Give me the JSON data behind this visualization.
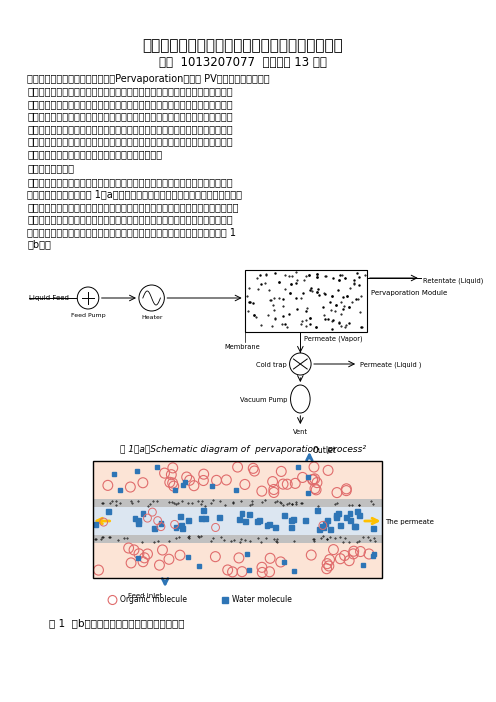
{
  "title": "滲透汽化膜分离法在脱除汽油中有机硫化物的应用",
  "author_line": "王雪  1013207077  化学工艺 13 级博",
  "lines_p1": [
    "　　滲透汽化技术又称滲透蒸发（Pervaporation，简称 PV）技术作为一项新兴",
    "膜分离技术，以其高效、经济、安全、清洁等优点，在石油化工、医药、食品、",
    "环保等领域广泛应用，成为目前膜分离研究领域的热点之一。该技术用于液体混",
    "合物的分离，其突出的优点是能够以低的能耗实现蒸馏、萌取、吸附等传统方法",
    "难于完成的分离任务。它特别适用于蒸馏法难以分离或不能分离的近汸点、恒汸",
    "点混合物及同分异构体的分离；对有机溶剖及混合溶剖中微量水的脱除及废水中",
    "少量有机污染物的分离具有明显的技术和经济优势。"
  ],
  "section1": "　　一、基本原理",
  "lines_p2": [
    "　　滲透汽化是利用膜对液体混合物中各组分的溶解扩散性能的不同，实现组分",
    "分离的一种膜过程，见图 1（a）。在滲透汽化过程中，料液侧（膜上游侧）通过",
    "加热提高待分离组分的分压，膜下游侧通常与真空泵相连，维持很低的组分分压，",
    "在膜两侧组分分压差的推动下，各组分选择性地通过膜表面进行扩散，并在膜下",
    "游侧汽化，最后通过冷凝的方式移出。有机溶剖脱水滲透汽化分离的原理见图 1",
    "（b）。"
  ],
  "fig1a_caption": "图 1（a）Schematic diagram of  pervaporation   process²",
  "fig1b_caption": "图 1  （b）有机溶剖脱水滲透汽化分离的原理",
  "bg_color": "#ffffff"
}
